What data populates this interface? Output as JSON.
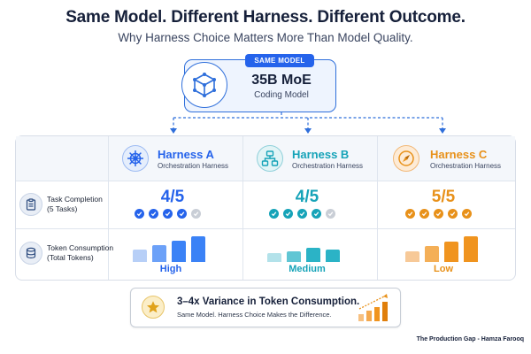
{
  "header": {
    "title": "Same Model. Different Harness. Different Outcome.",
    "subtitle": "Why Harness Choice Matters More Than Model Quality."
  },
  "model": {
    "badge": "SAME MODEL",
    "name": "35B MoE",
    "description": "Coding Model",
    "icon": "cube-network-icon"
  },
  "rows": {
    "task": {
      "label_line1": "Task Completion",
      "label_line2": "(5 Tasks)",
      "icon": "clipboard-icon"
    },
    "tokens": {
      "label_line1": "Token Consumption",
      "label_line2": "(Total Tokens)",
      "icon": "database-icon"
    }
  },
  "harnesses": [
    {
      "name": "Harness A",
      "subtitle": "Orchestration Harness",
      "icon": "ship-wheel-icon",
      "color": "#2563eb",
      "score": "4/5",
      "completed": 4,
      "total": 5,
      "token_level": "High",
      "bar_levels": [
        0.4,
        0.55,
        0.7,
        0.85
      ],
      "bar_color": "#3b82f6",
      "bar_color_light": "#b7cff7"
    },
    {
      "name": "Harness B",
      "subtitle": "Orchestration Harness",
      "icon": "flowchart-icon",
      "color": "#16a3b8",
      "score": "4/5",
      "completed": 4,
      "total": 5,
      "token_level": "Medium",
      "bar_levels": [
        0.28,
        0.36,
        0.48,
        0.4
      ],
      "bar_color": "#2bb3c6",
      "bar_color_light": "#b3e2ea"
    },
    {
      "name": "Harness C",
      "subtitle": "Orchestration Harness",
      "icon": "compass-icon",
      "color": "#e8911a",
      "score": "5/5",
      "completed": 5,
      "total": 5,
      "token_level": "Low",
      "bar_levels": [
        0.36,
        0.52,
        0.68,
        0.85
      ],
      "bar_color": "#f0941f",
      "bar_color_light": "#f7c998"
    }
  ],
  "callout": {
    "title": "3–4x Variance in Token Consumption.",
    "subtitle": "Same Model. Harness Choice Makes the Difference.",
    "icon": "star-icon",
    "chart_icon": "rising-bars-icon"
  },
  "footer": "The Production Gap - Hamza Farooq",
  "colors": {
    "accent": "#2563eb",
    "teal": "#16a3b8",
    "orange": "#e8911a",
    "incomplete": "#c9ced6"
  }
}
